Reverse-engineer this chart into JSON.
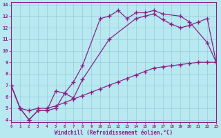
{
  "xlabel": "Windchill (Refroidissement éolien,°C)",
  "bg_color": "#b8e8f0",
  "line_color": "#882288",
  "grid_color": "#99ccdd",
  "curve1_x": [
    0,
    1,
    2,
    3,
    4,
    5,
    6,
    7,
    8,
    10,
    11,
    12,
    13,
    14,
    15,
    16,
    17,
    19,
    20,
    22,
    23
  ],
  "curve1_y": [
    7.0,
    5.0,
    4.0,
    4.8,
    4.8,
    6.5,
    6.3,
    7.3,
    8.7,
    12.8,
    13.0,
    13.5,
    12.8,
    13.3,
    13.3,
    13.5,
    13.2,
    13.0,
    12.5,
    10.7,
    9.0
  ],
  "curve2_x": [
    0,
    1,
    2,
    3,
    4,
    5,
    6,
    7,
    8,
    11,
    14,
    15,
    16,
    17,
    18,
    19,
    20,
    21,
    22,
    23
  ],
  "curve2_y": [
    7.0,
    5.0,
    4.0,
    4.8,
    4.8,
    5.0,
    6.3,
    5.9,
    7.5,
    11.0,
    12.8,
    13.0,
    13.2,
    12.7,
    12.3,
    12.0,
    12.2,
    12.5,
    12.8,
    9.0
  ],
  "curve3_x": [
    0,
    1,
    2,
    3,
    4,
    5,
    6,
    7,
    8,
    9,
    10,
    11,
    12,
    13,
    14,
    15,
    16,
    17,
    18,
    19,
    20,
    21,
    22,
    23
  ],
  "curve3_y": [
    7.0,
    5.0,
    4.8,
    5.0,
    5.0,
    5.2,
    5.5,
    5.8,
    6.1,
    6.4,
    6.7,
    7.0,
    7.3,
    7.6,
    7.9,
    8.2,
    8.5,
    8.6,
    8.7,
    8.8,
    8.9,
    9.0,
    9.0,
    9.0
  ],
  "xlim": [
    0,
    23
  ],
  "ylim": [
    3.8,
    14.2
  ],
  "yticks": [
    4,
    5,
    6,
    7,
    8,
    9,
    10,
    11,
    12,
    13,
    14
  ],
  "xticks": [
    0,
    1,
    2,
    3,
    4,
    5,
    6,
    7,
    8,
    9,
    10,
    11,
    12,
    13,
    14,
    15,
    16,
    17,
    18,
    19,
    20,
    21,
    22,
    23
  ]
}
